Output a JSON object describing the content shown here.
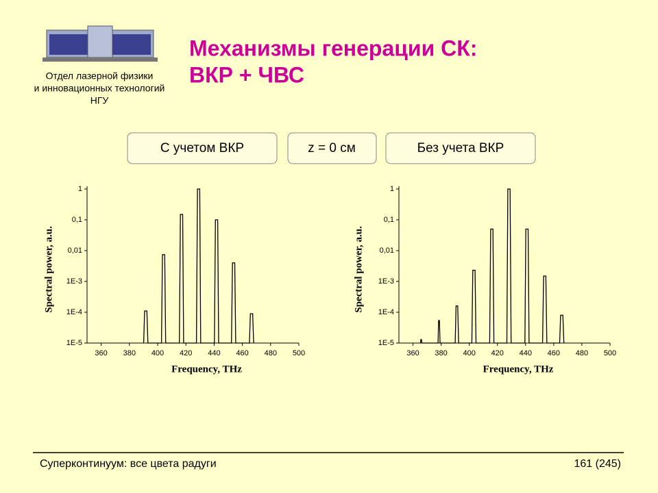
{
  "header": {
    "department": [
      "Отдел лазерной физики",
      "и инновационных технологий",
      "НГУ"
    ],
    "title": [
      "Механизмы генерации СК:",
      "ВКР + ЧВС"
    ]
  },
  "buttons": [
    "С учетом ВКР",
    "z = 0 см",
    "Без учета ВКР"
  ],
  "chart_data": [
    {
      "type": "line",
      "xlabel": "Frequency, THz",
      "ylabel": "Spectral power, a.u.",
      "log_scale": true,
      "xlim": [
        350,
        500
      ],
      "xticks": [
        360,
        380,
        400,
        420,
        440,
        460,
        480,
        500
      ],
      "ylim": [
        1e-05,
        1
      ],
      "yticks": [
        {
          "value": 1e-05,
          "label": "1E-5"
        },
        {
          "value": 0.0001,
          "label": "1E-4"
        },
        {
          "value": 0.001,
          "label": "1E-3"
        },
        {
          "value": 0.01,
          "label": "0,01"
        },
        {
          "value": 0.1,
          "label": "0,1"
        },
        1
      ],
      "x": [
        390.1,
        390.8,
        392.4,
        393.1,
        402.7,
        403.4,
        405,
        405.7,
        415.4,
        416.1,
        417.7,
        418.4,
        427.5,
        428.2,
        429.8,
        430.5,
        440.2,
        440.9,
        442.5,
        443.2,
        452.3,
        453,
        454.6,
        455.3,
        465,
        465.7,
        467.3,
        468
      ],
      "series": [
        {
          "color": "#000000",
          "values": [
            1e-05,
            0.00011,
            0.00011,
            1e-05,
            1e-05,
            0.0074,
            0.0074,
            1e-05,
            1e-05,
            0.15,
            0.15,
            1e-05,
            1e-05,
            1,
            1,
            1e-05,
            1e-05,
            0.1,
            0.1,
            1e-05,
            1e-05,
            0.004,
            0.004,
            1e-05,
            1e-05,
            9e-05,
            9e-05,
            1e-05
          ]
        }
      ]
    },
    {
      "type": "line",
      "xlabel": "Frequency, THz",
      "ylabel": "Spectral power, a.u.",
      "log_scale": true,
      "xlim": [
        350,
        500
      ],
      "xticks": [
        360,
        380,
        400,
        420,
        440,
        460,
        480,
        500
      ],
      "ylim": [
        1e-05,
        1
      ],
      "yticks": [
        {
          "value": 1e-05,
          "label": "1E-5"
        },
        {
          "value": 0.0001,
          "label": "1E-4"
        },
        {
          "value": 0.001,
          "label": "1E-3"
        },
        {
          "value": 0.01,
          "label": "0,01"
        },
        {
          "value": 0.1,
          "label": "0,1"
        },
        1
      ],
      "x": [
        365.3,
        365.6,
        366,
        366.3,
        377.8,
        378.2,
        378.8,
        379.2,
        390,
        390.6,
        391.8,
        392.4,
        401.8,
        402.5,
        404.1,
        404.8,
        414.5,
        415.2,
        416.8,
        417.5,
        426.7,
        427.4,
        429,
        429.7,
        439.5,
        440.2,
        441.8,
        442.5,
        452.1,
        452.8,
        454.4,
        455.1,
        464.2,
        464.9,
        466.5,
        467.2
      ],
      "series": [
        {
          "color": "#000000",
          "values": [
            1e-05,
            1.3e-05,
            1.3e-05,
            1e-05,
            1e-05,
            5.4e-05,
            5.4e-05,
            1e-05,
            1e-05,
            0.00016,
            0.00016,
            1e-05,
            1e-05,
            0.0023,
            0.0023,
            1e-05,
            1e-05,
            0.05,
            0.05,
            1e-05,
            1e-05,
            1,
            1,
            1e-05,
            1e-05,
            0.05,
            0.05,
            1e-05,
            1e-05,
            0.0015,
            0.0015,
            1e-05,
            1e-05,
            8e-05,
            8e-05,
            1e-05
          ]
        }
      ]
    }
  ],
  "footer": {
    "left": "Суперконтинуум: все цвета радуги",
    "right": "161 (245)"
  }
}
